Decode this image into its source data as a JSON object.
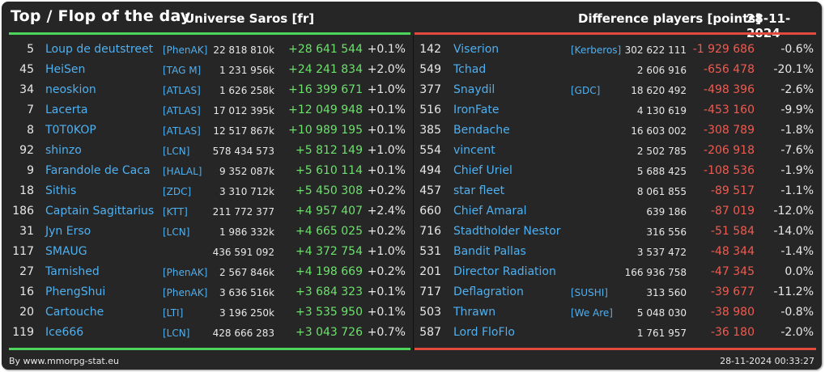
{
  "header": {
    "title": "Top / Flop of the day",
    "universe": "Universe Saros [fr]",
    "metric": "Difference players [points]",
    "date": "28-11-2024"
  },
  "colors": {
    "top_accent": "#4cd45c",
    "flop_accent": "#e34a3e",
    "gain_text": "#6ee06e",
    "loss_text": "#f05a50",
    "link_text": "#4fb0f0"
  },
  "top": [
    {
      "rank": "5",
      "name": "Loup de deutstreet",
      "alliance": "[PhenAK]",
      "points": "22 818 810k",
      "diff": "+28 641 544",
      "pct": "+0.1%"
    },
    {
      "rank": "45",
      "name": "HeiSen",
      "alliance": "[TAG M]",
      "points": "1 231 956k",
      "diff": "+24 241 834",
      "pct": "+2.0%"
    },
    {
      "rank": "34",
      "name": "neoskion",
      "alliance": "[ATLAS]",
      "points": "1 626 258k",
      "diff": "+16 399 671",
      "pct": "+1.0%"
    },
    {
      "rank": "7",
      "name": "Lacerta",
      "alliance": "[ATLAS]",
      "points": "17 012 395k",
      "diff": "+12 049 948",
      "pct": "+0.1%"
    },
    {
      "rank": "8",
      "name": "T0T0KOP",
      "alliance": "[ATLAS]",
      "points": "12 517 867k",
      "diff": "+10 989 195",
      "pct": "+0.1%"
    },
    {
      "rank": "92",
      "name": "shinzo",
      "alliance": "[LCN]",
      "points": "578 434 573",
      "diff": "+5 812 149",
      "pct": "+1.0%"
    },
    {
      "rank": "9",
      "name": "Farandole de Caca",
      "alliance": "[HALAL]",
      "points": "9 352 087k",
      "diff": "+5 610 114",
      "pct": "+0.1%"
    },
    {
      "rank": "18",
      "name": "Sithis",
      "alliance": "[ZDC]",
      "points": "3 310 712k",
      "diff": "+5 450 308",
      "pct": "+0.2%"
    },
    {
      "rank": "186",
      "name": "Captain Sagittarius",
      "alliance": "[KTT]",
      "points": "211 772 377",
      "diff": "+4 957 407",
      "pct": "+2.4%"
    },
    {
      "rank": "31",
      "name": "Jyn Erso",
      "alliance": "[LCN]",
      "points": "1 986 332k",
      "diff": "+4 665 025",
      "pct": "+0.2%"
    },
    {
      "rank": "117",
      "name": "SMAUG",
      "alliance": "",
      "points": "436 591 092",
      "diff": "+4 372 754",
      "pct": "+1.0%"
    },
    {
      "rank": "27",
      "name": "Tarnished",
      "alliance": "[PhenAK]",
      "points": "2 567 846k",
      "diff": "+4 198 669",
      "pct": "+0.2%"
    },
    {
      "rank": "16",
      "name": "PhengShui",
      "alliance": "[PhenAK]",
      "points": "3 636 516k",
      "diff": "+3 684 323",
      "pct": "+0.1%"
    },
    {
      "rank": "20",
      "name": "Cartouche",
      "alliance": "[LTI]",
      "points": "3 196 250k",
      "diff": "+3 535 950",
      "pct": "+0.1%"
    },
    {
      "rank": "119",
      "name": "Ice666",
      "alliance": "[LCN]",
      "points": "428 666 283",
      "diff": "+3 043 726",
      "pct": "+0.7%"
    }
  ],
  "flop": [
    {
      "rank": "142",
      "name": "Viserion",
      "alliance": "[Kerberos]",
      "points": "302 622 111",
      "diff": "-1 929 686",
      "pct": "-0.6%"
    },
    {
      "rank": "549",
      "name": "Tchad",
      "alliance": "",
      "points": "2 606 916",
      "diff": "-656 478",
      "pct": "-20.1%"
    },
    {
      "rank": "377",
      "name": "Snaydil",
      "alliance": "[GDC]",
      "points": "18 620 492",
      "diff": "-498 396",
      "pct": "-2.6%"
    },
    {
      "rank": "516",
      "name": "IronFate",
      "alliance": "",
      "points": "4 130 619",
      "diff": "-453 160",
      "pct": "-9.9%"
    },
    {
      "rank": "385",
      "name": "Bendache",
      "alliance": "",
      "points": "16 603 002",
      "diff": "-308 789",
      "pct": "-1.8%"
    },
    {
      "rank": "554",
      "name": "vincent",
      "alliance": "",
      "points": "2 502 785",
      "diff": "-206 918",
      "pct": "-7.6%"
    },
    {
      "rank": "494",
      "name": "Chief Uriel",
      "alliance": "",
      "points": "5 688 425",
      "diff": "-108 536",
      "pct": "-1.9%"
    },
    {
      "rank": "457",
      "name": "star fleet",
      "alliance": "",
      "points": "8 061 855",
      "diff": "-89 517",
      "pct": "-1.1%"
    },
    {
      "rank": "660",
      "name": "Chief Amaral",
      "alliance": "",
      "points": "639 186",
      "diff": "-87 019",
      "pct": "-12.0%"
    },
    {
      "rank": "716",
      "name": "Stadtholder Nestor",
      "alliance": "",
      "points": "316 556",
      "diff": "-51 584",
      "pct": "-14.0%"
    },
    {
      "rank": "531",
      "name": "Bandit Pallas",
      "alliance": "",
      "points": "3 537 472",
      "diff": "-48 344",
      "pct": "-1.4%"
    },
    {
      "rank": "201",
      "name": "Director Radiation",
      "alliance": "",
      "points": "166 936 758",
      "diff": "-47 345",
      "pct": "0.0%"
    },
    {
      "rank": "717",
      "name": "Deflagration",
      "alliance": "[SUSHI]",
      "points": "313 560",
      "diff": "-39 677",
      "pct": "-11.2%"
    },
    {
      "rank": "503",
      "name": "Thrawn",
      "alliance": "[We Are]",
      "points": "5 048 030",
      "diff": "-38 980",
      "pct": "-0.8%"
    },
    {
      "rank": "587",
      "name": "Lord FloFlo",
      "alliance": "",
      "points": "1 761 957",
      "diff": "-36 180",
      "pct": "-2.0%"
    }
  ],
  "footer": {
    "credit": "By www.mmorpg-stat.eu",
    "timestamp": "28-11-2024 00:33:27"
  }
}
